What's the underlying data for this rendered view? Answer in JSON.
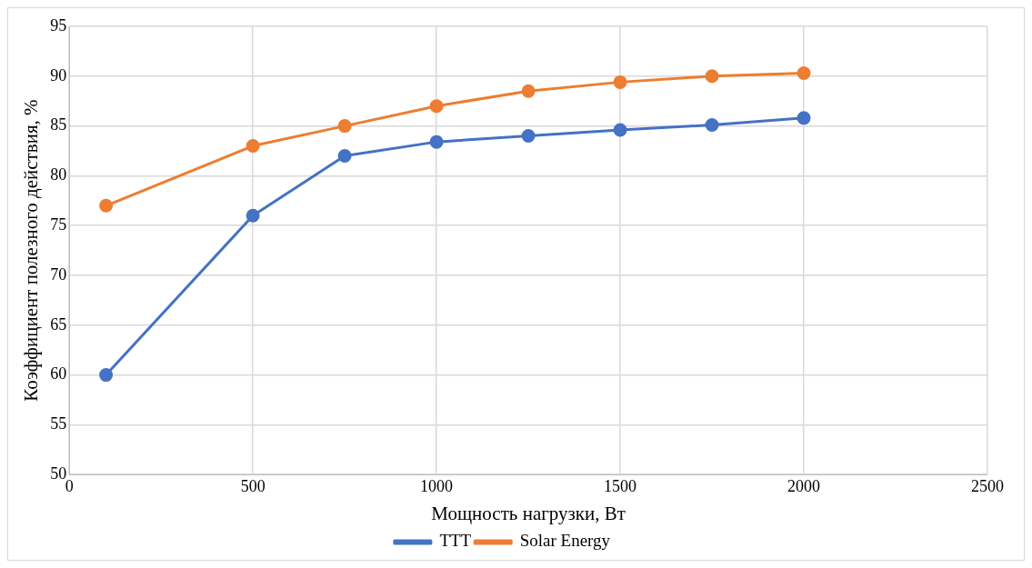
{
  "chart_data": {
    "type": "line",
    "xlabel": "Мощность нагрузки, Вт",
    "ylabel": "Коэффициент полезного действия, %",
    "x": [
      100,
      500,
      750,
      1000,
      1250,
      1500,
      1750,
      2000
    ],
    "series": [
      {
        "name": "TTT",
        "color": "#4472c4",
        "values": [
          60,
          76,
          82,
          83.4,
          84,
          84.6,
          85.1,
          85.8
        ]
      },
      {
        "name": "Solar Energy",
        "color": "#ed7d31",
        "values": [
          77,
          83,
          85,
          87,
          88.5,
          89.4,
          90,
          90.3
        ]
      }
    ],
    "xlim": [
      0,
      2500
    ],
    "xticks": [
      0,
      500,
      1000,
      1500,
      2000,
      2500
    ],
    "ylim": [
      50,
      95
    ],
    "yticks": [
      50,
      55,
      60,
      65,
      70,
      75,
      80,
      85,
      90,
      95
    ],
    "grid": true,
    "legend": "bottom",
    "marker": "circle",
    "line_style": "solid"
  }
}
